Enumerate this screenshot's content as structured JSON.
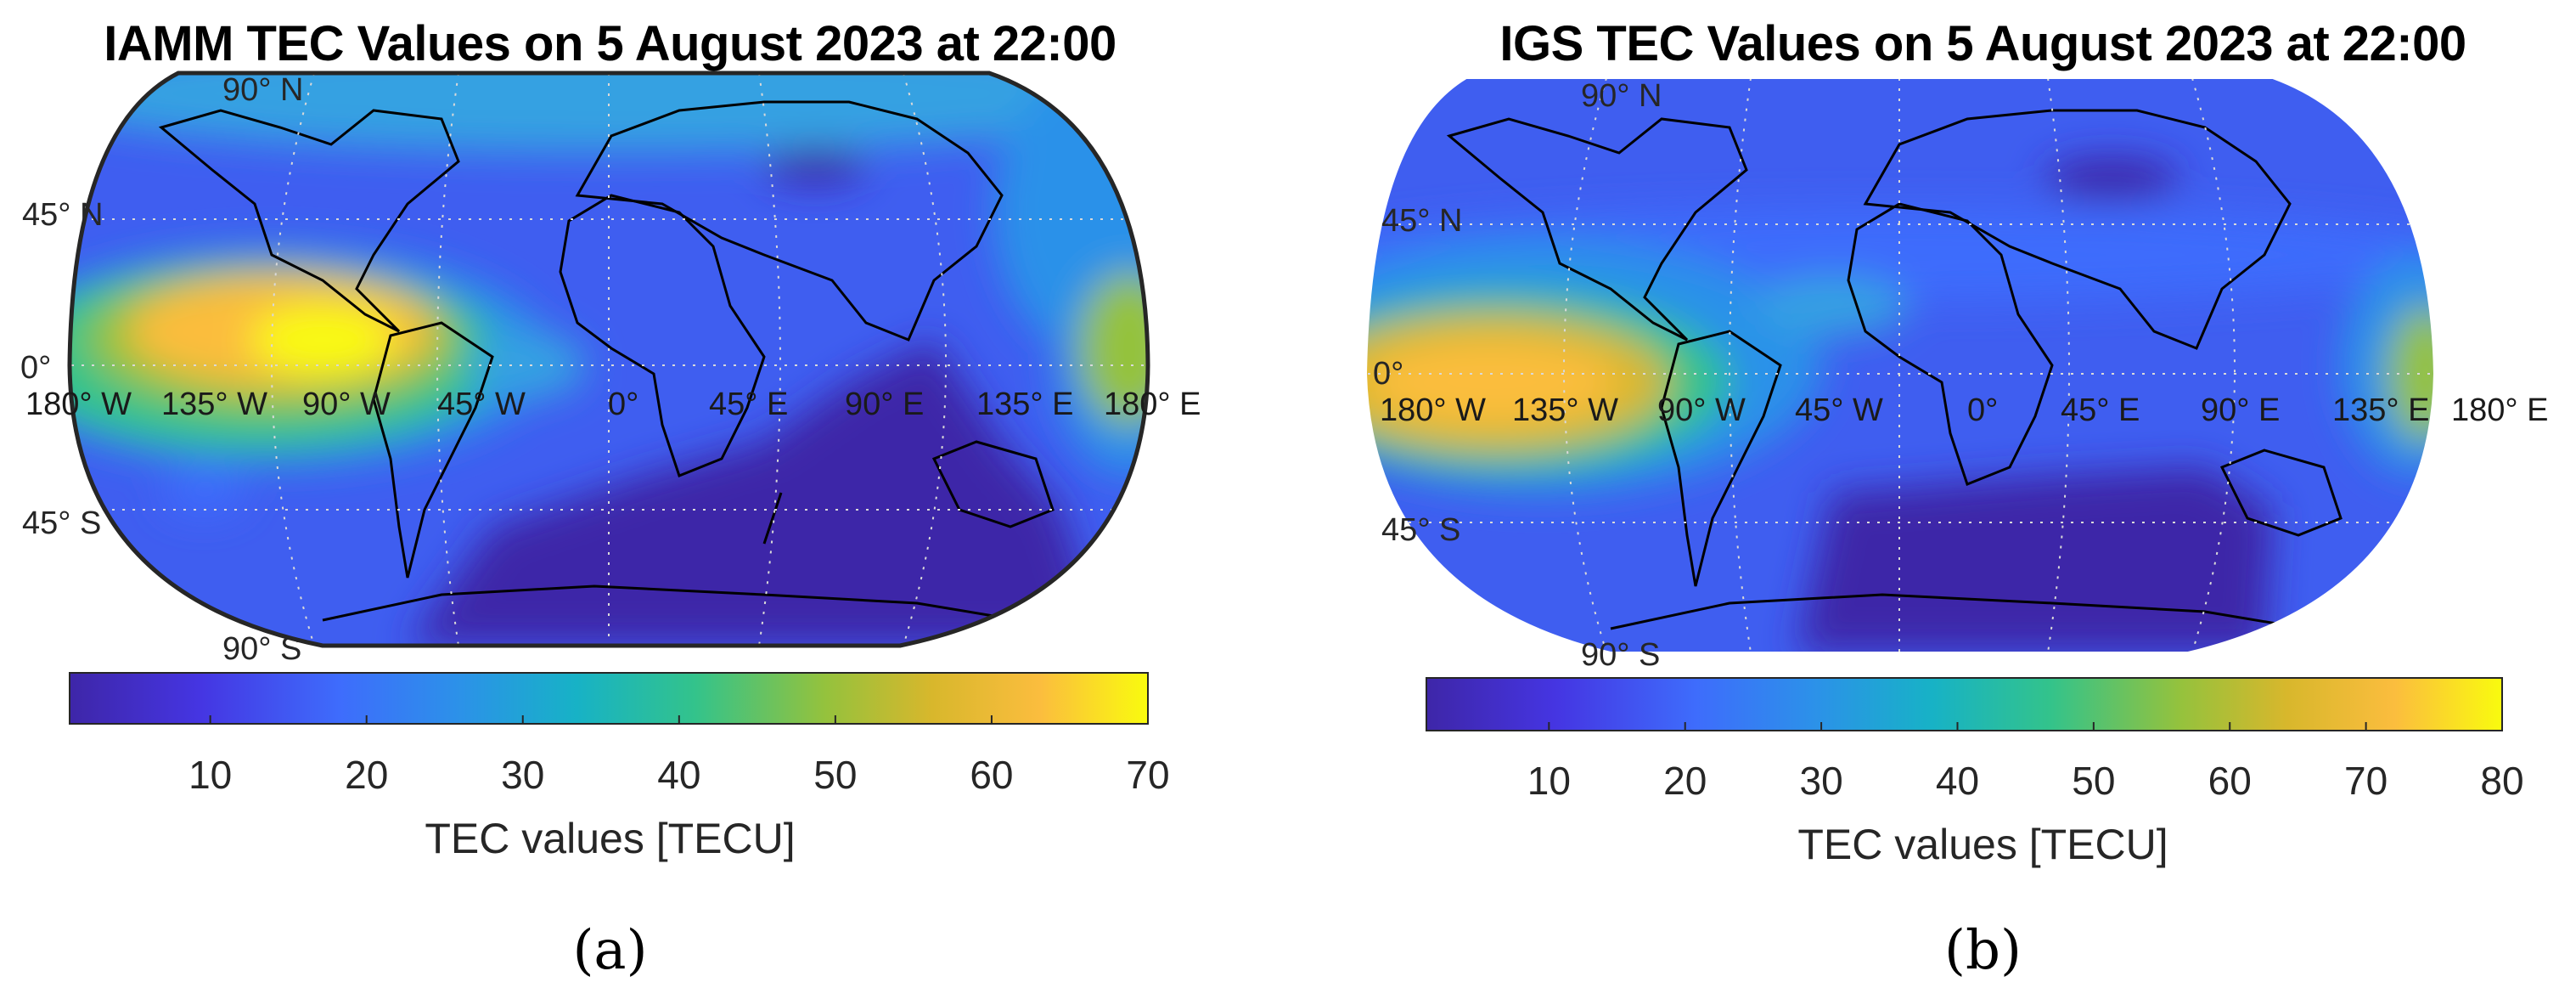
{
  "panels": [
    {
      "id": "a",
      "title": "IAMM TEC Values on 5 August 2023 at 22:00",
      "colorbar_label": "TEC values [TECU]",
      "colorbar_ticks": [
        "10",
        "20",
        "30",
        "40",
        "50",
        "60",
        "70"
      ],
      "colorbar_range": [
        1,
        70
      ],
      "caption": "(a)"
    },
    {
      "id": "b",
      "title": "IGS TEC Values on 5 August 2023 at 22:00",
      "colorbar_label": "TEC values [TECU]",
      "colorbar_ticks": [
        "10",
        "20",
        "30",
        "40",
        "50",
        "60",
        "70",
        "80"
      ],
      "colorbar_range": [
        1,
        80
      ],
      "caption": "(b)"
    }
  ],
  "latitude_labels": [
    "90° N",
    "45° N",
    "0°",
    "45° S",
    "90° S"
  ],
  "longitude_labels": [
    "180° W",
    "135° W",
    "90° W",
    "45° W",
    "0°",
    "45° E",
    "90° E",
    "135° E",
    "180° E"
  ],
  "colormap": "parula",
  "projection": "Robinson"
}
